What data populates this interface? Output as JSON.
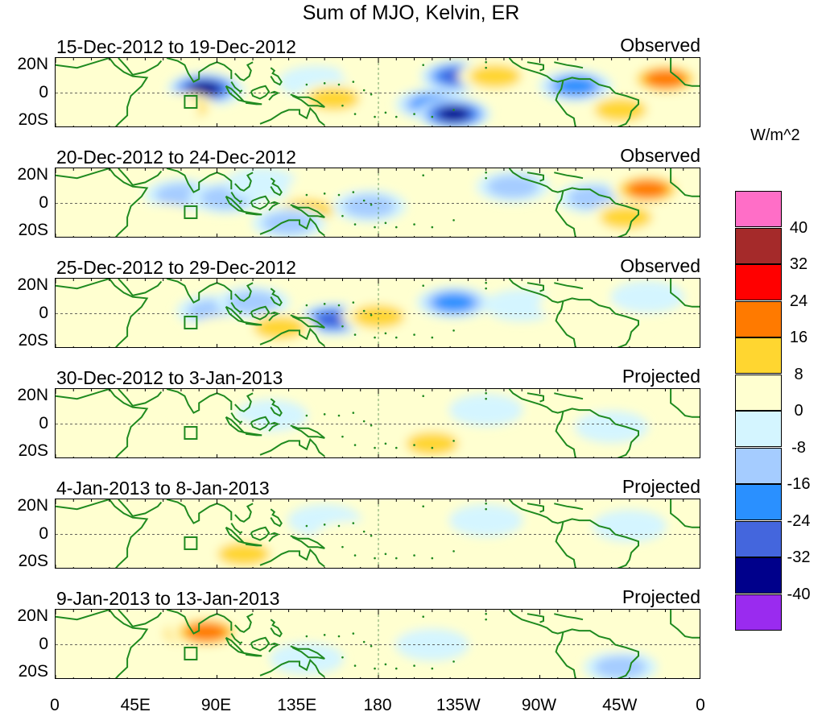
{
  "title": "Sum of MJO, Kelvin, ER",
  "panels": [
    {
      "dates": "15-Dec-2012 to 19-Dec-2012",
      "kind": "Observed"
    },
    {
      "dates": "20-Dec-2012 to 24-Dec-2012",
      "kind": "Observed"
    },
    {
      "dates": "25-Dec-2012 to 29-Dec-2012",
      "kind": "Observed"
    },
    {
      "dates": "30-Dec-2012 to 3-Jan-2013",
      "kind": "Projected"
    },
    {
      "dates": "4-Jan-2013 to 8-Jan-2013",
      "kind": "Projected"
    },
    {
      "dates": "9-Jan-2013 to 13-Jan-2013",
      "kind": "Projected"
    }
  ],
  "lat_labels": [
    "20N",
    "0",
    "20S"
  ],
  "lon_labels": [
    "0",
    "45E",
    "90E",
    "135E",
    "180",
    "135W",
    "90W",
    "45W",
    "0"
  ],
  "colorbar": {
    "units": "W/m^2",
    "labels": [
      "40",
      "32",
      "24",
      "16",
      "8",
      "0",
      "-8",
      "-16",
      "-24",
      "-32",
      "-40"
    ],
    "colors": [
      "#ff6ec7",
      "#a52a2a",
      "#ff0000",
      "#ff7a00",
      "#ffd630",
      "#ffffd0",
      "#d4f5ff",
      "#a5ccff",
      "#2a90ff",
      "#4466dd",
      "#00008b",
      "#9a2bef"
    ]
  },
  "map_colors": {
    "coast": "#1f8a1f",
    "land_line": "#4a8a4a"
  },
  "anomalies": [
    [
      {
        "lon": 85,
        "lat": 2,
        "v": -24
      },
      {
        "lon": 83,
        "lat": 3,
        "v": -40
      },
      {
        "lon": 70,
        "lat": -11,
        "v": 20
      },
      {
        "lon": 60,
        "lat": -12,
        "v": 14
      },
      {
        "lon": 145,
        "lat": 8,
        "v": -12
      },
      {
        "lon": 155,
        "lat": -4,
        "v": 16
      },
      {
        "lon": 210,
        "lat": -8,
        "v": -24
      },
      {
        "lon": 222,
        "lat": -15,
        "v": -40
      },
      {
        "lon": 224,
        "lat": 12,
        "v": -32
      },
      {
        "lon": 245,
        "lat": 12,
        "v": 20
      },
      {
        "lon": 290,
        "lat": 5,
        "v": -28
      },
      {
        "lon": 340,
        "lat": 10,
        "v": 30
      },
      {
        "lon": 315,
        "lat": -12,
        "v": 22
      },
      {
        "lon": 180,
        "lat": 14,
        "v": 10
      }
    ],
    [
      {
        "lon": 70,
        "lat": 6,
        "v": -20
      },
      {
        "lon": 95,
        "lat": 4,
        "v": -18
      },
      {
        "lon": 115,
        "lat": 14,
        "v": -12
      },
      {
        "lon": 60,
        "lat": -12,
        "v": 14
      },
      {
        "lon": 150,
        "lat": 10,
        "v": 12
      },
      {
        "lon": 140,
        "lat": -5,
        "v": 22
      },
      {
        "lon": 175,
        "lat": -2,
        "v": -22
      },
      {
        "lon": 220,
        "lat": 10,
        "v": 12
      },
      {
        "lon": 255,
        "lat": 12,
        "v": -20
      },
      {
        "lon": 300,
        "lat": 4,
        "v": -16
      },
      {
        "lon": 330,
        "lat": 10,
        "v": 30
      },
      {
        "lon": 318,
        "lat": -10,
        "v": 20
      },
      {
        "lon": 130,
        "lat": -14,
        "v": -18
      }
    ],
    [
      {
        "lon": 88,
        "lat": 2,
        "v": -22
      },
      {
        "lon": 110,
        "lat": 8,
        "v": -16
      },
      {
        "lon": 155,
        "lat": -4,
        "v": -35
      },
      {
        "lon": 95,
        "lat": -13,
        "v": 14
      },
      {
        "lon": 125,
        "lat": -10,
        "v": 18
      },
      {
        "lon": 180,
        "lat": -2,
        "v": 16
      },
      {
        "lon": 222,
        "lat": 8,
        "v": -28
      },
      {
        "lon": 260,
        "lat": 6,
        "v": -14
      },
      {
        "lon": 290,
        "lat": 6,
        "v": 14
      },
      {
        "lon": 310,
        "lat": -6,
        "v": 10
      },
      {
        "lon": 330,
        "lat": 12,
        "v": -12
      },
      {
        "lon": 20,
        "lat": -4,
        "v": 8
      }
    ],
    [
      {
        "lon": 120,
        "lat": 6,
        "v": -14
      },
      {
        "lon": 95,
        "lat": -8,
        "v": 14
      },
      {
        "lon": 140,
        "lat": -14,
        "v": 14
      },
      {
        "lon": 210,
        "lat": -14,
        "v": 16
      },
      {
        "lon": 200,
        "lat": 12,
        "v": 8
      },
      {
        "lon": 240,
        "lat": 10,
        "v": -12
      },
      {
        "lon": 290,
        "lat": 6,
        "v": 10
      },
      {
        "lon": 310,
        "lat": -2,
        "v": -10
      },
      {
        "lon": 40,
        "lat": -8,
        "v": 6
      }
    ],
    [
      {
        "lon": 80,
        "lat": 4,
        "v": 10
      },
      {
        "lon": 105,
        "lat": -14,
        "v": 16
      },
      {
        "lon": 150,
        "lat": 10,
        "v": -10
      },
      {
        "lon": 165,
        "lat": -2,
        "v": 10
      },
      {
        "lon": 200,
        "lat": 12,
        "v": 8
      },
      {
        "lon": 240,
        "lat": 10,
        "v": -12
      },
      {
        "lon": 280,
        "lat": -6,
        "v": 8
      },
      {
        "lon": 320,
        "lat": 6,
        "v": -10
      },
      {
        "lon": 40,
        "lat": -10,
        "v": 6
      }
    ],
    [
      {
        "lon": 75,
        "lat": 8,
        "v": 18
      },
      {
        "lon": 84,
        "lat": 9,
        "v": 28
      },
      {
        "lon": 140,
        "lat": -10,
        "v": -12
      },
      {
        "lon": 190,
        "lat": 14,
        "v": 10
      },
      {
        "lon": 210,
        "lat": 0,
        "v": -10
      },
      {
        "lon": 260,
        "lat": 12,
        "v": 10
      },
      {
        "lon": 315,
        "lat": -16,
        "v": -20
      },
      {
        "lon": 40,
        "lat": -10,
        "v": 6
      },
      {
        "lon": 310,
        "lat": 6,
        "v": 8
      }
    ]
  ]
}
